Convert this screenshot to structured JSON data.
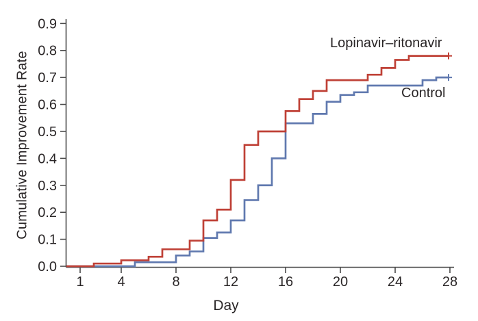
{
  "figure": {
    "background_color": "#ffffff",
    "axis_color": "#4a4a4a",
    "text_color": "#2a2627"
  },
  "chart_data": {
    "type": "line",
    "subtype": "step-function-kaplan-meier",
    "title": "",
    "xlabel": "Day",
    "ylabel": "Cumulative Improvement Rate",
    "xlim": [
      0,
      28.3
    ],
    "ylim": [
      0,
      0.911
    ],
    "grid": false,
    "legend_position": "inline-annotations",
    "x_ticks": [
      1,
      4,
      8,
      12,
      16,
      20,
      24,
      28
    ],
    "x_tick_labels": [
      "1",
      "4",
      "8",
      "12",
      "16",
      "20",
      "24",
      "28"
    ],
    "y_ticks": [
      0.0,
      0.1,
      0.2,
      0.3,
      0.4,
      0.5,
      0.6,
      0.7,
      0.8,
      0.9
    ],
    "y_tick_labels": [
      "0.0",
      "0.1",
      "0.2",
      "0.3",
      "0.4",
      "0.5",
      "0.6",
      "0.7",
      "0.8",
      "0.9"
    ],
    "series": [
      {
        "name": "Control",
        "color": "#6079af",
        "start": [
          0,
          0
        ],
        "steps": [
          [
            5,
            0.015
          ],
          [
            8,
            0.04
          ],
          [
            9,
            0.055
          ],
          [
            10,
            0.105
          ],
          [
            11,
            0.125
          ],
          [
            12,
            0.17
          ],
          [
            13,
            0.245
          ],
          [
            14,
            0.3
          ],
          [
            15,
            0.4
          ],
          [
            16,
            0.53
          ],
          [
            18,
            0.565
          ],
          [
            19,
            0.61
          ],
          [
            20,
            0.635
          ],
          [
            21,
            0.645
          ],
          [
            22,
            0.67
          ],
          [
            26,
            0.69
          ],
          [
            27,
            0.7
          ]
        ],
        "end_day": 28,
        "end_value": 0.7,
        "censored_at_end": true
      },
      {
        "name": "Lopinavir–ritonavir",
        "color": "#bf4036",
        "start": [
          0,
          0
        ],
        "steps": [
          [
            2,
            0.01
          ],
          [
            4,
            0.022
          ],
          [
            6,
            0.035
          ],
          [
            7,
            0.063
          ],
          [
            9,
            0.095
          ],
          [
            10,
            0.17
          ],
          [
            11,
            0.21
          ],
          [
            12,
            0.32
          ],
          [
            13,
            0.45
          ],
          [
            14,
            0.5
          ],
          [
            16,
            0.575
          ],
          [
            17,
            0.62
          ],
          [
            18,
            0.65
          ],
          [
            19,
            0.69
          ],
          [
            22,
            0.71
          ],
          [
            23,
            0.735
          ],
          [
            24,
            0.765
          ],
          [
            25,
            0.78
          ]
        ],
        "end_day": 28,
        "end_value": 0.78,
        "censored_at_end": true
      }
    ]
  }
}
